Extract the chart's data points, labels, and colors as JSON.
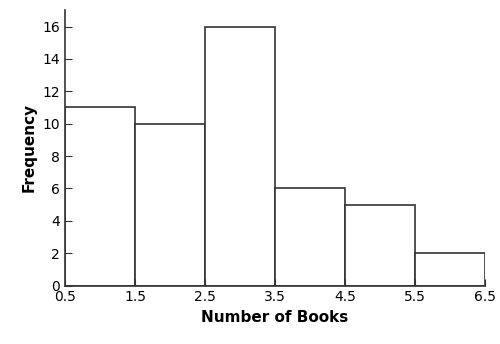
{
  "bar_centers": [
    1,
    2,
    3,
    4,
    5,
    6
  ],
  "bar_heights": [
    11,
    10,
    16,
    6,
    5,
    2
  ],
  "bar_width": 1.0,
  "xlim": [
    0.5,
    6.5
  ],
  "ylim": [
    0,
    17
  ],
  "xticks": [
    0.5,
    1.5,
    2.5,
    3.5,
    4.5,
    5.5,
    6.5
  ],
  "yticks": [
    0,
    2,
    4,
    6,
    8,
    10,
    12,
    14,
    16
  ],
  "xlabel": "Number of Books",
  "ylabel": "Frequency",
  "bar_facecolor": "#ffffff",
  "bar_edgecolor": "#333333",
  "background_color": "#ffffff",
  "edge_linewidth": 1.2,
  "xlabel_fontsize": 11,
  "ylabel_fontsize": 11,
  "tick_fontsize": 10,
  "xtick_labels": [
    "0.5",
    "1.5",
    "2.5",
    "3.5",
    "4.5",
    "5.5",
    "6.5"
  ],
  "ytick_labels": [
    "0",
    "2",
    "4",
    "6",
    "8",
    "10",
    "12",
    "14",
    "16"
  ]
}
